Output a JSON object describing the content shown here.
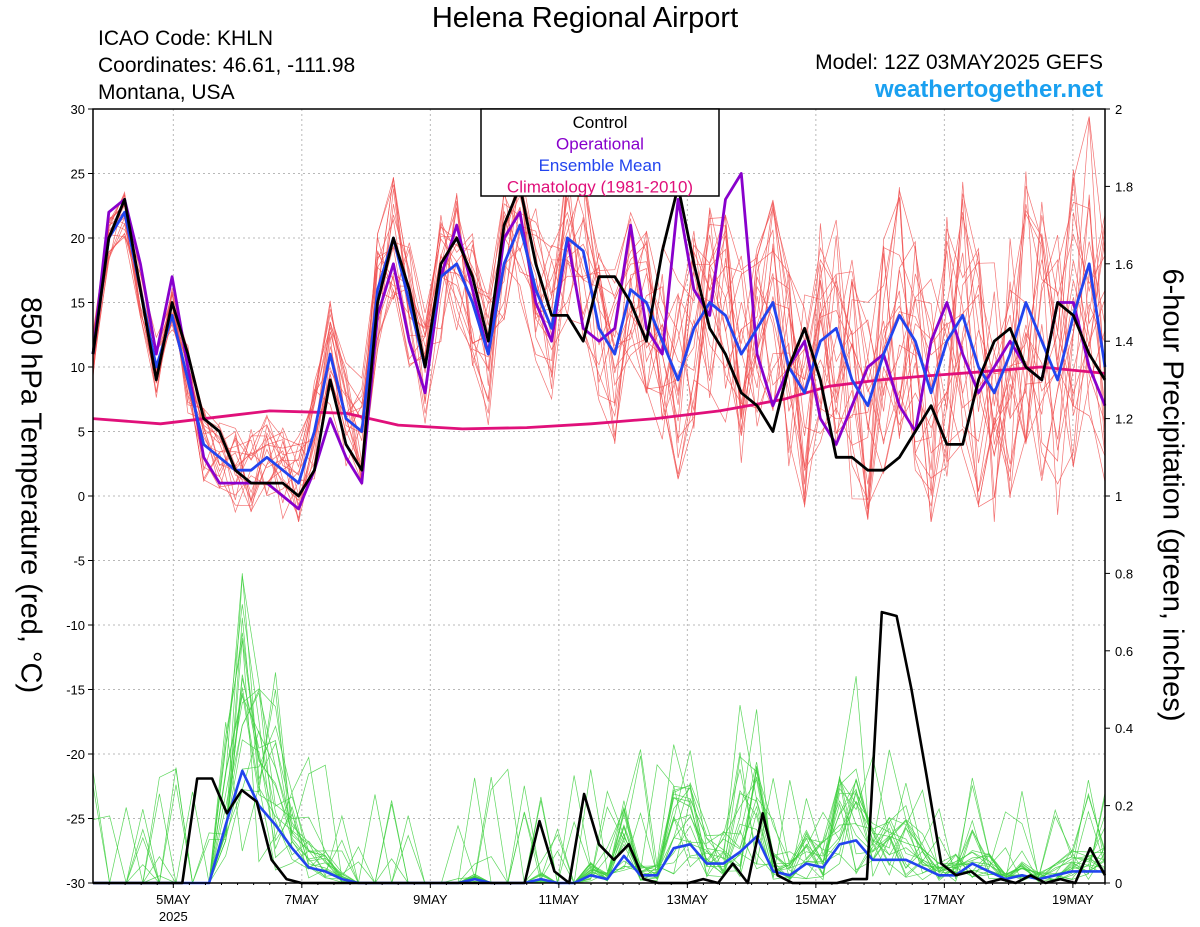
{
  "header": {
    "title": "Helena Regional Airport",
    "icao": "ICAO Code: KHLN",
    "coordinates": "Coordinates: 46.61, -111.98",
    "region": "Montana, USA",
    "model": "Model: 12Z 03MAY2025 GEFS",
    "website": "weathertogether.net"
  },
  "colors": {
    "control": "#000000",
    "operational": "#8800cc",
    "ensemble_mean": "#2244ee",
    "climatology": "#e0107a",
    "temp_members": "#f05050",
    "precip_members": "#40d040",
    "website": "#1aa0f0"
  },
  "chart_data": {
    "type": "line",
    "ylabel": "850 hPa Temperature (red, °C)",
    "y2label": "6-hour Precipitation (green, inches)",
    "ylim": [
      -30,
      30
    ],
    "y2lim": [
      0,
      2
    ],
    "yticks": [
      "30",
      "25",
      "20",
      "15",
      "10",
      "5",
      "0",
      "-5",
      "-10",
      "-15",
      "-20",
      "-25",
      "-30"
    ],
    "y2ticks": [
      "2",
      "1.8",
      "1.6",
      "1.4",
      "1.2",
      "1",
      "0.8",
      "0.6",
      "0.4",
      "0.2",
      "0"
    ],
    "x_range_days": [
      3.75,
      19.5
    ],
    "xticks": [
      {
        "day": 5,
        "label": "5MAY",
        "sub": "2025"
      },
      {
        "day": 7,
        "label": "7MAY",
        "sub": ""
      },
      {
        "day": 9,
        "label": "9MAY",
        "sub": ""
      },
      {
        "day": 11,
        "label": "11MAY",
        "sub": ""
      },
      {
        "day": 13,
        "label": "13MAY",
        "sub": ""
      },
      {
        "day": 15,
        "label": "15MAY",
        "sub": ""
      },
      {
        "day": 17,
        "label": "17MAY",
        "sub": ""
      },
      {
        "day": 19,
        "label": "19MAY",
        "sub": ""
      }
    ],
    "grid": true,
    "legend": {
      "position": "top-center",
      "entries": [
        {
          "label": "Control",
          "color": "#000000"
        },
        {
          "label": "Operational",
          "color": "#8800cc"
        },
        {
          "label": "Ensemble Mean",
          "color": "#2244ee"
        },
        {
          "label": "Climatology (1981-2010)",
          "color": "#e0107a"
        }
      ]
    },
    "series": [
      {
        "name": "Control",
        "axis": "temperature",
        "values": [
          11,
          20,
          23,
          16,
          9,
          15,
          11,
          6,
          5,
          2,
          1,
          1,
          1,
          0,
          2,
          9,
          4,
          2,
          15,
          20,
          16,
          10,
          18,
          20,
          17,
          12,
          21,
          24,
          18,
          14,
          14,
          12,
          17,
          17,
          15,
          12,
          19,
          24,
          18,
          13,
          11,
          8,
          7,
          5,
          10,
          13,
          9,
          3,
          3,
          2,
          2,
          3,
          5,
          7,
          4,
          4,
          9,
          12,
          13,
          10,
          9,
          15,
          14,
          11,
          9
        ]
      },
      {
        "name": "Operational",
        "axis": "temperature",
        "values": [
          11,
          22,
          23,
          18,
          11,
          17,
          10,
          3,
          1,
          1,
          1,
          1,
          0,
          -1,
          2,
          6,
          3,
          1,
          14,
          18,
          12,
          8,
          17,
          21,
          16,
          11,
          20,
          22,
          15,
          12,
          20,
          13,
          12,
          13,
          21,
          13,
          11,
          23,
          16,
          14,
          23,
          25,
          11,
          7,
          10,
          12,
          6,
          4,
          7,
          10,
          11,
          7,
          5,
          12,
          15,
          11,
          8,
          10,
          12,
          10,
          9,
          15,
          15,
          10,
          7
        ]
      },
      {
        "name": "Ensemble Mean",
        "axis": "temperature",
        "values": [
          11,
          20,
          22,
          16,
          10,
          14,
          9,
          4,
          3,
          2,
          2,
          3,
          2,
          1,
          5,
          11,
          6,
          5,
          16,
          20,
          15,
          10,
          17,
          18,
          15,
          11,
          18,
          21,
          16,
          13,
          20,
          19,
          13,
          11,
          16,
          15,
          12,
          9,
          13,
          15,
          14,
          11,
          13,
          15,
          10,
          8,
          12,
          13,
          9,
          7,
          11,
          14,
          12,
          8,
          12,
          14,
          10,
          8,
          11,
          15,
          12,
          9,
          14,
          18,
          10
        ]
      },
      {
        "name": "Climatology (1981-2010)",
        "axis": "temperature",
        "x": [
          3.75,
          4.8,
          6.0,
          6.5,
          7.2,
          7.7,
          8.5,
          9.5,
          10.5,
          11.5,
          12.5,
          13.5,
          14.5,
          15.2,
          16.0,
          16.7,
          17.5,
          18.5,
          19.5
        ],
        "values": [
          6,
          5.6,
          6.3,
          6.6,
          6.5,
          6.4,
          5.5,
          5.2,
          5.3,
          5.6,
          6.0,
          6.6,
          7.5,
          8.5,
          9.0,
          9.3,
          9.6,
          10.0,
          9.5
        ]
      },
      {
        "name": "Control",
        "axis": "precipitation",
        "values": [
          0,
          0,
          0,
          0,
          0,
          0,
          0,
          0.27,
          0.27,
          0.18,
          0.24,
          0.21,
          0.06,
          0.01,
          0,
          0,
          0,
          0,
          0,
          0,
          0,
          0,
          0,
          0,
          0,
          0,
          0,
          0,
          0,
          0,
          0.16,
          0.03,
          0,
          0.23,
          0.1,
          0.06,
          0.1,
          0.01,
          0,
          0,
          0,
          0.01,
          0,
          0.05,
          0,
          0.18,
          0.02,
          0,
          0,
          0,
          0,
          0.01,
          0.01,
          0.7,
          0.69,
          0.5,
          0.28,
          0.05,
          0.02,
          0.03,
          0,
          0.01,
          0,
          0.02,
          0,
          0.01,
          0,
          0.09,
          0.02
        ]
      },
      {
        "name": "Ensemble Mean",
        "axis": "precipitation",
        "values": [
          0,
          0,
          0,
          0,
          0,
          0,
          0,
          0,
          0.15,
          0.29,
          0.2,
          0.15,
          0.09,
          0.04,
          0.03,
          0.01,
          0,
          0,
          0,
          0,
          0,
          0,
          0,
          0.01,
          0,
          0,
          0,
          0.01,
          0,
          0,
          0.02,
          0.01,
          0.07,
          0.02,
          0.02,
          0.09,
          0.1,
          0.05,
          0.05,
          0.08,
          0.12,
          0.03,
          0.02,
          0.05,
          0.04,
          0.1,
          0.11,
          0.06,
          0.06,
          0.06,
          0.04,
          0.02,
          0.02,
          0.05,
          0.03,
          0.01,
          0.02,
          0.01,
          0.02,
          0.03,
          0.03,
          0.03
        ]
      }
    ]
  }
}
